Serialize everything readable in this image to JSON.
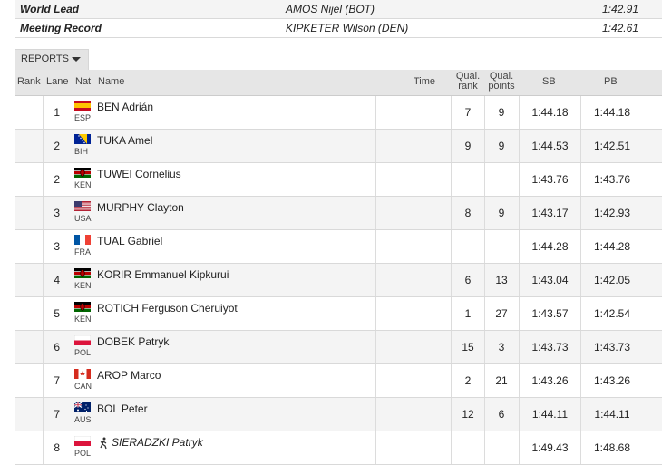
{
  "records": [
    {
      "label": "World Lead",
      "name": "AMOS Nijel (BOT)",
      "time": "1:42.91"
    },
    {
      "label": "Meeting Record",
      "name": "KIPKETER Wilson (DEN)",
      "time": "1:42.61"
    }
  ],
  "reports": {
    "label": "REPORTS"
  },
  "headers": {
    "rank": "Rank",
    "lane": "Lane",
    "nat": "Nat",
    "name": "Name",
    "time": "Time",
    "qual_rank_1": "Qual.",
    "qual_rank_2": "rank",
    "qual_points_1": "Qual.",
    "qual_points_2": "points",
    "sb": "SB",
    "pb": "PB"
  },
  "rows": [
    {
      "lane": "1",
      "code": "ESP",
      "name": "BEN Adrián",
      "time": "",
      "qrank": "7",
      "qpoints": "9",
      "sb": "1:44.18",
      "pb": "1:44.18",
      "flag": "ESP"
    },
    {
      "lane": "2",
      "code": "BIH",
      "name": "TUKA Amel",
      "time": "",
      "qrank": "9",
      "qpoints": "9",
      "sb": "1:44.53",
      "pb": "1:42.51",
      "flag": "BIH"
    },
    {
      "lane": "2",
      "code": "KEN",
      "name": "TUWEI Cornelius",
      "time": "",
      "qrank": "",
      "qpoints": "",
      "sb": "1:43.76",
      "pb": "1:43.76",
      "flag": "KEN"
    },
    {
      "lane": "3",
      "code": "USA",
      "name": "MURPHY Clayton",
      "time": "",
      "qrank": "8",
      "qpoints": "9",
      "sb": "1:43.17",
      "pb": "1:42.93",
      "flag": "USA"
    },
    {
      "lane": "3",
      "code": "FRA",
      "name": "TUAL Gabriel",
      "time": "",
      "qrank": "",
      "qpoints": "",
      "sb": "1:44.28",
      "pb": "1:44.28",
      "flag": "FRA"
    },
    {
      "lane": "4",
      "code": "KEN",
      "name": "KORIR Emmanuel Kipkurui",
      "time": "",
      "qrank": "6",
      "qpoints": "13",
      "sb": "1:43.04",
      "pb": "1:42.05",
      "flag": "KEN"
    },
    {
      "lane": "5",
      "code": "KEN",
      "name": "ROTICH Ferguson Cheruiyot",
      "time": "",
      "qrank": "1",
      "qpoints": "27",
      "sb": "1:43.57",
      "pb": "1:42.54",
      "flag": "KEN"
    },
    {
      "lane": "6",
      "code": "POL",
      "name": "DOBEK Patryk",
      "time": "",
      "qrank": "15",
      "qpoints": "3",
      "sb": "1:43.73",
      "pb": "1:43.73",
      "flag": "POL"
    },
    {
      "lane": "7",
      "code": "CAN",
      "name": "AROP Marco",
      "time": "",
      "qrank": "2",
      "qpoints": "21",
      "sb": "1:43.26",
      "pb": "1:43.26",
      "flag": "CAN"
    },
    {
      "lane": "7",
      "code": "AUS",
      "name": "BOL Peter",
      "time": "",
      "qrank": "12",
      "qpoints": "6",
      "sb": "1:44.11",
      "pb": "1:44.11",
      "flag": "AUS"
    },
    {
      "lane": "8",
      "code": "POL",
      "name": "SIERADZKI Patryk",
      "time": "",
      "qrank": "",
      "qpoints": "",
      "sb": "1:49.43",
      "pb": "1:48.68",
      "flag": "POL",
      "icon": "athlete-running-icon"
    }
  ]
}
